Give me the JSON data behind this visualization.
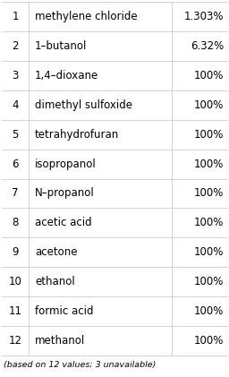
{
  "rows": [
    {
      "num": "1",
      "name": "methylene chloride",
      "value": "1.303%"
    },
    {
      "num": "2",
      "name": "1-butanol",
      "value": "6.32%"
    },
    {
      "num": "3",
      "name": "1,4-dioxane",
      "value": "100%"
    },
    {
      "num": "4",
      "name": "dimethyl sulfoxide",
      "value": "100%"
    },
    {
      "num": "5",
      "name": "tetrahydrofuran",
      "value": "100%"
    },
    {
      "num": "6",
      "name": "isopropanol",
      "value": "100%"
    },
    {
      "num": "7",
      "name": "N-propanol",
      "value": "100%"
    },
    {
      "num": "8",
      "name": "acetic acid",
      "value": "100%"
    },
    {
      "num": "9",
      "name": "acetone",
      "value": "100%"
    },
    {
      "num": "10",
      "name": "ethanol",
      "value": "100%"
    },
    {
      "num": "11",
      "name": "formic acid",
      "value": "100%"
    },
    {
      "num": "12",
      "name": "methanol",
      "value": "100%"
    }
  ],
  "footer": "(based on 12 values; 3 unavailable)",
  "bg_color": "#ffffff",
  "text_color": "#000000",
  "line_color": "#cccccc",
  "font_size": 8.5,
  "footer_font_size": 6.8,
  "dash_char": "–"
}
